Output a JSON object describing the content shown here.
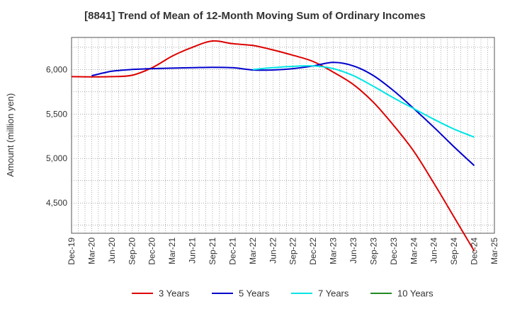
{
  "chart_data": {
    "type": "line",
    "title": "[8841]  Trend of Mean of 12-Month Moving Sum of Ordinary Incomes",
    "xlabel": "",
    "ylabel": "Amount (million yen)",
    "x_tick_labels": [
      "Dec-19",
      "Mar-20",
      "Jun-20",
      "Sep-20",
      "Dec-20",
      "Mar-21",
      "Jun-21",
      "Sep-21",
      "Dec-21",
      "Mar-22",
      "Jun-22",
      "Sep-22",
      "Dec-22",
      "Mar-23",
      "Jun-23",
      "Sep-23",
      "Dec-23",
      "Mar-24",
      "Jun-24",
      "Sep-24",
      "Dec-24",
      "Mar-25"
    ],
    "y_ticks": [
      4500,
      5000,
      5500,
      6000
    ],
    "y_tick_labels": [
      "4,500",
      "5,000",
      "5,500",
      "6,000"
    ],
    "ylim": [
      4160,
      6360
    ],
    "grid": true,
    "legend_position": "bottom",
    "series": [
      {
        "name": "3 Years",
        "color": "#dd0000",
        "x": [
          "Dec-19",
          "Mar-20",
          "Jun-20",
          "Sep-20",
          "Dec-20",
          "Mar-21",
          "Jun-21",
          "Sep-21",
          "Dec-21",
          "Mar-22",
          "Jun-22",
          "Sep-22",
          "Dec-22",
          "Mar-23",
          "Jun-23",
          "Sep-23",
          "Dec-23",
          "Mar-24",
          "Jun-24",
          "Sep-24",
          "Dec-24"
        ],
        "values": [
          5920,
          5918,
          5920,
          5935,
          6020,
          6150,
          6250,
          6320,
          6290,
          6270,
          6220,
          6160,
          6090,
          5970,
          5830,
          5630,
          5370,
          5080,
          4720,
          4340,
          3960
        ]
      },
      {
        "name": "5 Years",
        "color": "#0000cc",
        "x": [
          "Mar-20",
          "Jun-20",
          "Sep-20",
          "Dec-20",
          "Mar-21",
          "Jun-21",
          "Sep-21",
          "Dec-21",
          "Mar-22",
          "Jun-22",
          "Sep-22",
          "Dec-22",
          "Mar-23",
          "Jun-23",
          "Sep-23",
          "Dec-23",
          "Mar-24",
          "Jun-24",
          "Sep-24",
          "Dec-24"
        ],
        "values": [
          5930,
          5980,
          6000,
          6010,
          6015,
          6020,
          6025,
          6020,
          5995,
          5995,
          6010,
          6040,
          6080,
          6040,
          5930,
          5760,
          5560,
          5350,
          5130,
          4920
        ]
      },
      {
        "name": "7 Years",
        "color": "#00e5e5",
        "x": [
          "Mar-22",
          "Jun-22",
          "Sep-22",
          "Dec-22",
          "Mar-23",
          "Jun-23",
          "Sep-23",
          "Dec-23",
          "Mar-24",
          "Jun-24",
          "Sep-24",
          "Dec-24"
        ],
        "values": [
          6000,
          6020,
          6035,
          6040,
          6010,
          5930,
          5810,
          5680,
          5560,
          5440,
          5330,
          5240
        ]
      },
      {
        "name": "10 Years",
        "color": "#228b22",
        "x": [],
        "values": []
      }
    ]
  }
}
